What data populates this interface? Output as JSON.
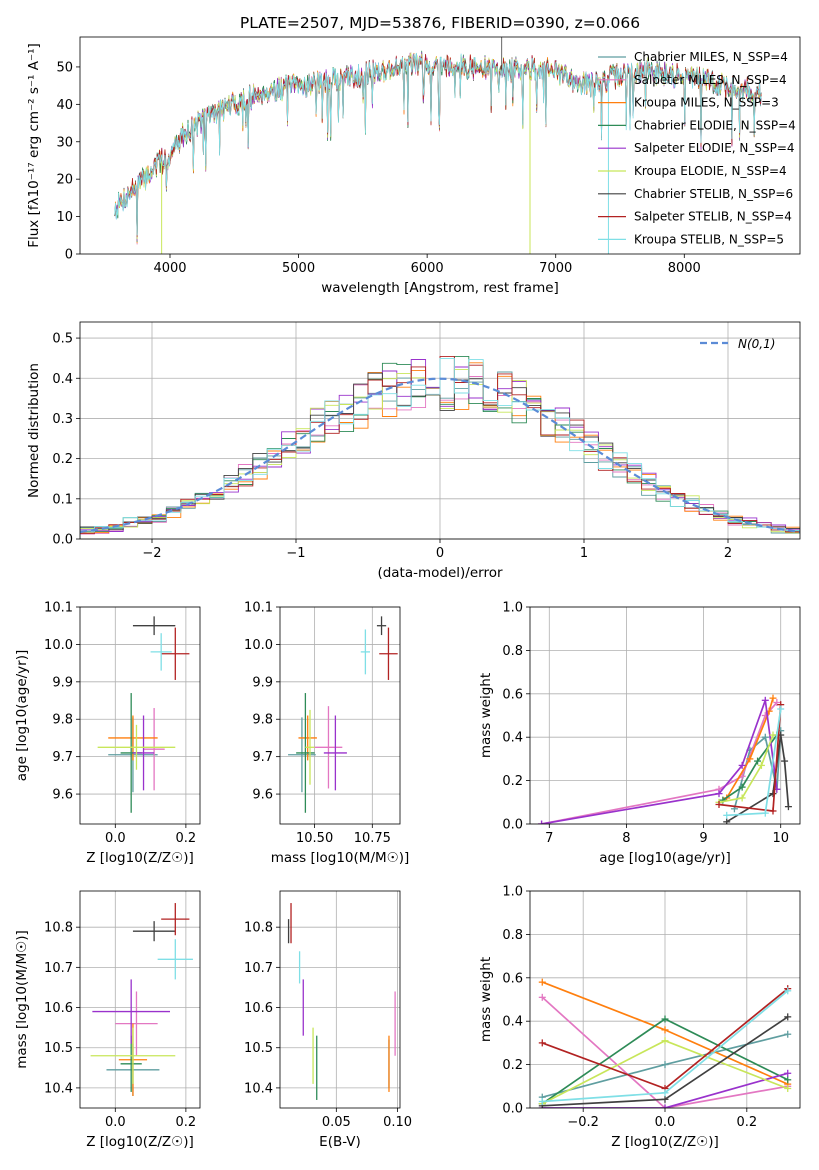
{
  "figure_title": "PLATE=2507, MJD=53876, FIBERID=0390, z=0.066",
  "model_colors": [
    "#5f9ea0",
    "#e377c2",
    "#ff7f0e",
    "#2e8b57",
    "#9932cc",
    "#c8e65a",
    "#404040",
    "#b22222",
    "#7fdfe6"
  ],
  "chart_data": [
    {
      "id": "spectrum",
      "type": "line",
      "title": "PLATE=2507, MJD=53876, FIBERID=0390, z=0.066",
      "xlabel": "wavelength [Angstrom, rest frame]",
      "ylabel": "Flux [fλ10⁻¹⁷ erg cm⁻² s⁻¹ A⁻¹]",
      "xlim": [
        3300,
        8900
      ],
      "ylim": [
        0,
        58
      ],
      "xticks": [
        4000,
        5000,
        6000,
        7000,
        8000
      ],
      "yticks": [
        0,
        10,
        20,
        30,
        40,
        50
      ],
      "legend_position": "top-right",
      "grid": false,
      "trend": {
        "x": [
          3570,
          3700,
          3800,
          3900,
          4000,
          4100,
          4300,
          4500,
          4700,
          5000,
          5200,
          5500,
          5800,
          6000,
          6300,
          6600,
          6900,
          7100,
          7300,
          7500,
          7700,
          7900,
          8100,
          8300,
          8600
        ],
        "y": [
          12,
          17,
          20,
          24,
          26,
          32,
          37,
          40,
          43,
          45,
          46,
          48,
          50,
          51,
          50,
          49,
          50,
          47,
          45,
          48,
          49,
          48,
          47,
          45,
          43
        ]
      },
      "series": [
        {
          "name": "Chabrier MILES, N_SSP=4"
        },
        {
          "name": "Salpeter MILES, N_SSP=4"
        },
        {
          "name": "Kroupa MILES, N_SSP=3"
        },
        {
          "name": "Chabrier ELODIE, N_SSP=4"
        },
        {
          "name": "Salpeter ELODIE, N_SSP=4"
        },
        {
          "name": "Kroupa ELODIE, N_SSP=4"
        },
        {
          "name": "Chabrier STELIB, N_SSP=6"
        },
        {
          "name": "Salpeter STELIB, N_SSP=4"
        },
        {
          "name": "Kroupa STELIB, N_SSP=5"
        }
      ]
    },
    {
      "id": "residuals",
      "type": "histogram",
      "xlabel": "(data-model)/error",
      "ylabel": "Normed distribution",
      "xlim": [
        -2.5,
        2.5
      ],
      "ylim": [
        0,
        0.54
      ],
      "xticks": [
        -2,
        -1,
        0,
        1,
        2
      ],
      "yticks": [
        0.0,
        0.1,
        0.2,
        0.3,
        0.4,
        0.5
      ],
      "bin_width": 0.1,
      "grid": true,
      "reference_curve": "N(0,1)",
      "legend_position": "top-right"
    },
    {
      "id": "age_vs_Z",
      "type": "errorbar",
      "xlabel": "Z [log10(Z/Z☉)]",
      "ylabel": "age  [log10(age/yr)]",
      "xlim": [
        -0.1,
        0.24
      ],
      "ylim": [
        9.52,
        10.1
      ],
      "xticks": [
        0.0,
        0.2
      ],
      "yticks": [
        9.6,
        9.7,
        9.8,
        9.9,
        10.0,
        10.1
      ],
      "grid": true,
      "points": [
        {
          "x": 0.05,
          "y": 9.705,
          "xerr": 0.07,
          "yerr": 0.1
        },
        {
          "x": 0.11,
          "y": 9.72,
          "xerr": 0.03,
          "yerr": 0.11
        },
        {
          "x": 0.05,
          "y": 9.75,
          "xerr": 0.07,
          "yerr": 0.06
        },
        {
          "x": 0.045,
          "y": 9.71,
          "xerr": 0.03,
          "yerr": 0.16
        },
        {
          "x": 0.08,
          "y": 9.71,
          "xerr": 0.03,
          "yerr": 0.1
        },
        {
          "x": 0.06,
          "y": 9.725,
          "xerr": 0.11,
          "yerr": 0.06
        },
        {
          "x": 0.11,
          "y": 10.05,
          "xerr": 0.06,
          "yerr": 0.025
        },
        {
          "x": 0.17,
          "y": 9.975,
          "xerr": 0.04,
          "yerr": 0.07
        },
        {
          "x": 0.13,
          "y": 9.98,
          "xerr": 0.03,
          "yerr": 0.05
        }
      ]
    },
    {
      "id": "age_vs_mass",
      "type": "errorbar",
      "xlabel": "mass [log10(M/M☉)]",
      "ylabel": "",
      "xlim": [
        10.35,
        10.87
      ],
      "ylim": [
        9.52,
        10.1
      ],
      "xticks": [
        10.5,
        10.75
      ],
      "yticks": [
        9.6,
        9.7,
        9.8,
        9.9,
        10.0,
        10.1
      ],
      "grid": true,
      "points": [
        {
          "x": 10.445,
          "y": 9.705,
          "xerr": 0.06,
          "yerr": 0.1
        },
        {
          "x": 10.56,
          "y": 9.725,
          "xerr": 0.06,
          "yerr": 0.11
        },
        {
          "x": 10.47,
          "y": 9.75,
          "xerr": 0.04,
          "yerr": 0.06
        },
        {
          "x": 10.46,
          "y": 9.71,
          "xerr": 0.04,
          "yerr": 0.16
        },
        {
          "x": 10.59,
          "y": 9.71,
          "xerr": 0.05,
          "yerr": 0.1
        },
        {
          "x": 10.48,
          "y": 9.725,
          "xerr": 0.02,
          "yerr": 0.1
        },
        {
          "x": 10.79,
          "y": 10.05,
          "xerr": 0.02,
          "yerr": 0.025
        },
        {
          "x": 10.82,
          "y": 9.975,
          "xerr": 0.04,
          "yerr": 0.07
        },
        {
          "x": 10.72,
          "y": 9.98,
          "xerr": 0.02,
          "yerr": 0.06
        }
      ]
    },
    {
      "id": "massweight_vs_age",
      "type": "line",
      "xlabel": "age  [log10(age/yr)]",
      "ylabel": "mass weight",
      "xlim": [
        6.75,
        10.25
      ],
      "ylim": [
        0.0,
        1.0
      ],
      "xticks": [
        7,
        8,
        9,
        10
      ],
      "yticks": [
        0.0,
        0.2,
        0.4,
        0.6,
        0.8,
        1.0
      ],
      "grid": true,
      "series": [
        {
          "x": [
            9.4,
            9.6,
            9.8,
            9.95,
            10.0
          ],
          "y": [
            0.07,
            0.34,
            0.4,
            0.16,
            0.43
          ]
        },
        {
          "x": [
            6.9,
            9.2,
            9.5,
            9.8,
            9.95
          ],
          "y": [
            0.0,
            0.16,
            0.22,
            0.5,
            0.56
          ]
        },
        {
          "x": [
            9.3,
            9.6,
            9.85,
            9.9
          ],
          "y": [
            0.12,
            0.3,
            0.52,
            0.58
          ]
        },
        {
          "x": [
            9.25,
            9.5,
            9.7,
            9.95
          ],
          "y": [
            0.11,
            0.17,
            0.29,
            0.41
          ]
        },
        {
          "x": [
            6.9,
            9.2,
            9.5,
            9.8,
            9.95
          ],
          "y": [
            0.0,
            0.14,
            0.27,
            0.57,
            0.16
          ]
        },
        {
          "x": [
            9.2,
            9.5,
            9.75,
            9.9
          ],
          "y": [
            0.1,
            0.12,
            0.27,
            0.41
          ]
        },
        {
          "x": [
            9.3,
            9.9,
            10.0,
            10.05,
            10.1
          ],
          "y": [
            0.01,
            0.14,
            0.41,
            0.29,
            0.08
          ]
        },
        {
          "x": [
            9.2,
            9.9,
            10.0
          ],
          "y": [
            0.09,
            0.06,
            0.55
          ]
        },
        {
          "x": [
            9.3,
            9.8,
            10.0
          ],
          "y": [
            0.04,
            0.05,
            0.53
          ]
        }
      ]
    },
    {
      "id": "mass_vs_Z",
      "type": "errorbar",
      "xlabel": "Z [log10(Z/Z☉)]",
      "ylabel": "mass [log10(M/M☉)]",
      "xlim": [
        -0.1,
        0.24
      ],
      "ylim": [
        10.35,
        10.89
      ],
      "xticks": [
        0.0,
        0.2
      ],
      "yticks": [
        10.4,
        10.5,
        10.6,
        10.7,
        10.8
      ],
      "grid": true,
      "points": [
        {
          "x": 0.05,
          "y": 10.445,
          "xerr": 0.075,
          "yerr": 0.065
        },
        {
          "x": 0.06,
          "y": 10.56,
          "xerr": 0.06,
          "yerr": 0.08
        },
        {
          "x": 0.05,
          "y": 10.47,
          "xerr": 0.04,
          "yerr": 0.09
        },
        {
          "x": 0.045,
          "y": 10.46,
          "xerr": 0.03,
          "yerr": 0.07
        },
        {
          "x": 0.045,
          "y": 10.59,
          "xerr": 0.11,
          "yerr": 0.08
        },
        {
          "x": 0.05,
          "y": 10.48,
          "xerr": 0.12,
          "yerr": 0.07
        },
        {
          "x": 0.11,
          "y": 10.79,
          "xerr": 0.06,
          "yerr": 0.025
        },
        {
          "x": 0.17,
          "y": 10.82,
          "xerr": 0.04,
          "yerr": 0.04
        },
        {
          "x": 0.17,
          "y": 10.72,
          "xerr": 0.05,
          "yerr": 0.05
        }
      ]
    },
    {
      "id": "mass_vs_EBV",
      "type": "errorbar",
      "xlabel": "E(B-V)",
      "ylabel": "",
      "xlim": [
        0.004,
        0.102
      ],
      "ylim": [
        10.35,
        10.89
      ],
      "xticks": [
        0.05,
        0.1
      ],
      "yticks": [
        10.4,
        10.5,
        10.6,
        10.7,
        10.8
      ],
      "grid": true,
      "points": [
        {
          "x": 0.093,
          "y": 10.46,
          "xerr": 0.0,
          "yerr": 0.06
        },
        {
          "x": 0.098,
          "y": 10.56,
          "xerr": 0.0,
          "yerr": 0.08
        },
        {
          "x": 0.093,
          "y": 10.46,
          "xerr": 0.0,
          "yerr": 0.07
        },
        {
          "x": 0.034,
          "y": 10.45,
          "xerr": 0.0,
          "yerr": 0.08
        },
        {
          "x": 0.023,
          "y": 10.6,
          "xerr": 0.0,
          "yerr": 0.07
        },
        {
          "x": 0.031,
          "y": 10.48,
          "xerr": 0.0,
          "yerr": 0.07
        },
        {
          "x": 0.011,
          "y": 10.79,
          "xerr": 0.0,
          "yerr": 0.03
        },
        {
          "x": 0.013,
          "y": 10.81,
          "xerr": 0.0,
          "yerr": 0.05
        },
        {
          "x": 0.02,
          "y": 10.7,
          "xerr": 0.0,
          "yerr": 0.04
        }
      ]
    },
    {
      "id": "massweight_vs_Z",
      "type": "line",
      "xlabel": "Z [log10(Z/Z☉)]",
      "ylabel": "mass weight",
      "xlim": [
        -0.33,
        0.33
      ],
      "ylim": [
        0.0,
        1.0
      ],
      "xticks": [
        -0.2,
        0.0,
        0.2
      ],
      "yticks": [
        0.0,
        0.2,
        0.4,
        0.6,
        0.8,
        1.0
      ],
      "grid": true,
      "series": [
        {
          "x": [
            -0.3,
            0.0,
            0.3
          ],
          "y": [
            0.05,
            0.2,
            0.34
          ]
        },
        {
          "x": [
            -0.3,
            0.0,
            0.3
          ],
          "y": [
            0.51,
            0.0,
            0.1
          ]
        },
        {
          "x": [
            -0.3,
            0.0,
            0.3
          ],
          "y": [
            0.58,
            0.36,
            0.11
          ]
        },
        {
          "x": [
            -0.3,
            0.0,
            0.3
          ],
          "y": [
            0.02,
            0.41,
            0.13
          ]
        },
        {
          "x": [
            -0.3,
            0.0,
            0.3
          ],
          "y": [
            0.0,
            0.0,
            0.16
          ]
        },
        {
          "x": [
            -0.3,
            0.0,
            0.3
          ],
          "y": [
            0.02,
            0.31,
            0.09
          ]
        },
        {
          "x": [
            -0.3,
            0.0,
            0.3
          ],
          "y": [
            0.01,
            0.04,
            0.42
          ]
        },
        {
          "x": [
            -0.3,
            0.0,
            0.3
          ],
          "y": [
            0.3,
            0.09,
            0.55
          ]
        },
        {
          "x": [
            -0.3,
            0.0,
            0.3
          ],
          "y": [
            0.03,
            0.07,
            0.54
          ]
        }
      ]
    }
  ]
}
